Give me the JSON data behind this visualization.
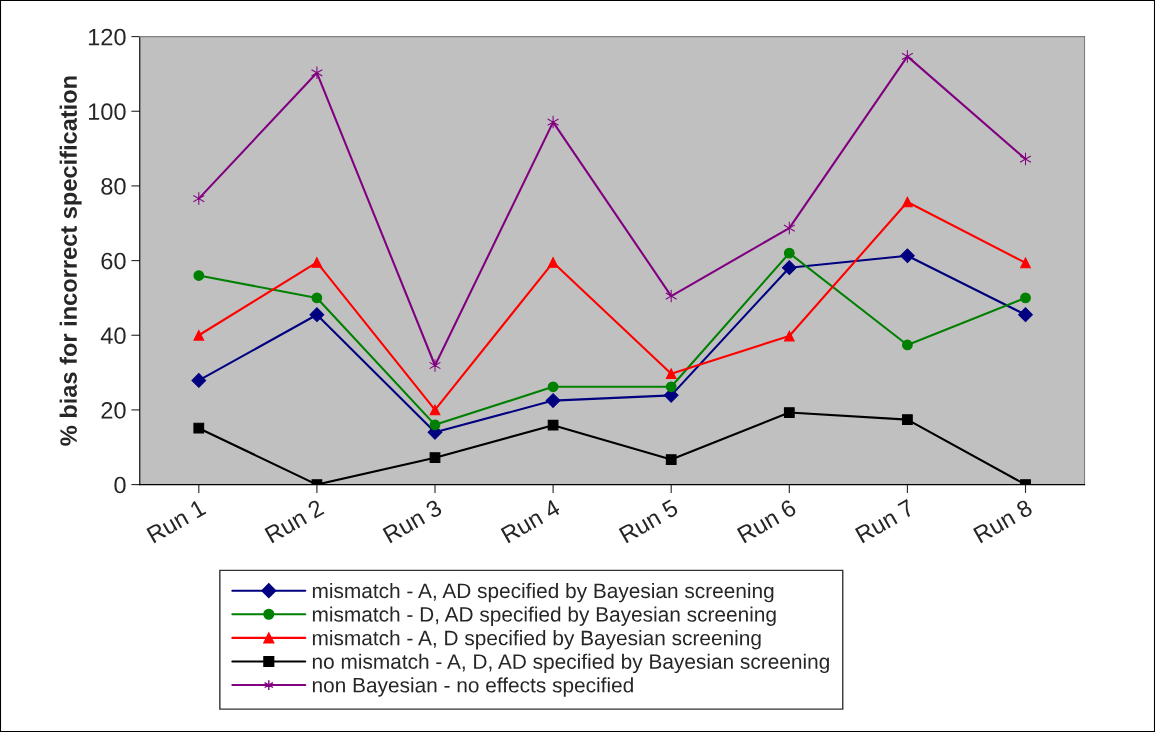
{
  "chart_data": {
    "type": "line",
    "ylabel": "% bias for incorrect specification",
    "categories": [
      "Run 1",
      "Run 2",
      "Run 3",
      "Run 4",
      "Run 5",
      "Run 6",
      "Run 7",
      "Run 8"
    ],
    "series": [
      {
        "name": "mismatch - A, AD specified by Bayesian screening",
        "color": "#000080",
        "marker": "diamond",
        "values": [
          27.9,
          45.5,
          14,
          22.5,
          23.9,
          58.1,
          61.3,
          45.5
        ]
      },
      {
        "name": "mismatch - D, AD specified by Bayesian screening",
        "color": "#008000",
        "marker": "circle",
        "values": [
          56,
          50,
          16,
          26.2,
          26.2,
          62,
          37.4,
          50
        ]
      },
      {
        "name": "mismatch - A, D specified by Bayesian screening",
        "color": "#ff0000",
        "marker": "triangle",
        "values": [
          40,
          59.5,
          20,
          59.5,
          29.7,
          39.8,
          75.7,
          59.4
        ]
      },
      {
        "name": "no mismatch - A, D, AD specified by Bayesian screening",
        "color": "#000000",
        "marker": "square",
        "values": [
          15.1,
          0,
          7.2,
          15.9,
          6.7,
          19.3,
          17.4,
          0
        ]
      },
      {
        "name": "non Bayesian - no effects specified",
        "color": "#800080",
        "marker": "cross",
        "values": [
          76.6,
          110.3,
          31.9,
          97.1,
          50.5,
          68.7,
          114.7,
          87.2
        ]
      }
    ],
    "ylim": [
      0,
      120
    ],
    "yticks": [
      0,
      20,
      40,
      60,
      80,
      100,
      120
    ],
    "grid": false,
    "legend": "bottom",
    "line_style": "solid"
  }
}
